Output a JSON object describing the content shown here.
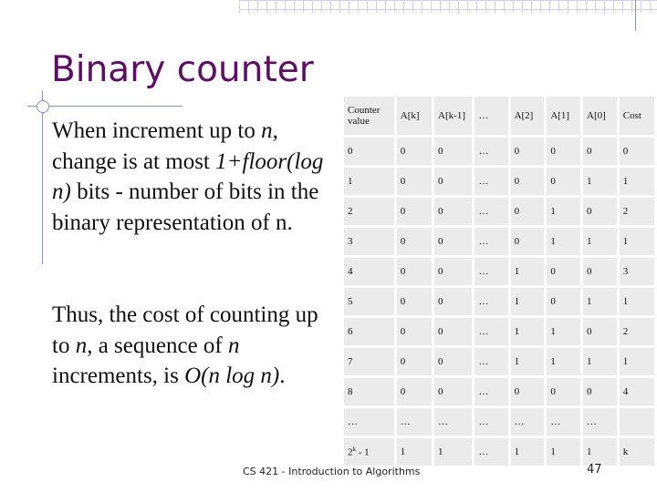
{
  "slide": {
    "title": "Binary counter",
    "para1": [
      {
        "text": "When increment up to ",
        "italic": false
      },
      {
        "text": "n",
        "italic": true
      },
      {
        "text": ", change is at most ",
        "italic": false
      },
      {
        "text": "1+floor(log n)",
        "italic": true
      },
      {
        "text": " bits - number of bits in the binary representation of n.",
        "italic": false
      }
    ],
    "para2": [
      {
        "text": "Thus, the cost of counting up to ",
        "italic": false
      },
      {
        "text": "n",
        "italic": true
      },
      {
        "text": ", a sequence of ",
        "italic": false
      },
      {
        "text": "n",
        "italic": true
      },
      {
        "text": " increments, is ",
        "italic": false
      },
      {
        "text": "O(n log n)",
        "italic": true
      },
      {
        "text": ".",
        "italic": false
      }
    ],
    "footer": "CS 421 - Introduction to Algorithms",
    "page_number": "47"
  },
  "table": {
    "headers": [
      "Counter value",
      "A[k]",
      "A[k-1]",
      "…",
      "A[2]",
      "A[1]",
      "A[0]",
      "Cost"
    ],
    "rows": [
      [
        "0",
        "0",
        "0",
        "…",
        "0",
        "0",
        "0",
        "0"
      ],
      [
        "1",
        "0",
        "0",
        "…",
        "0",
        "0",
        "1",
        "1"
      ],
      [
        "2",
        "0",
        "0",
        "…",
        "0",
        "1",
        "0",
        "2"
      ],
      [
        "3",
        "0",
        "0",
        "…",
        "0",
        "1",
        "1",
        "1"
      ],
      [
        "4",
        "0",
        "0",
        "…",
        "1",
        "0",
        "0",
        "3"
      ],
      [
        "5",
        "0",
        "0",
        "…",
        "1",
        "0",
        "1",
        "1"
      ],
      [
        "6",
        "0",
        "0",
        "…",
        "1",
        "1",
        "0",
        "2"
      ],
      [
        "7",
        "0",
        "0",
        "…",
        "1",
        "1",
        "1",
        "1"
      ],
      [
        "8",
        "0",
        "0",
        "…",
        "0",
        "0",
        "0",
        "4"
      ],
      [
        "…",
        "…",
        "…",
        "…",
        "…",
        "…",
        "…",
        ""
      ],
      [
        {
          "base": "2",
          "sup": "k",
          "rest": " - 1"
        },
        "1",
        "1",
        "…",
        "1",
        "1",
        "1",
        "k"
      ]
    ]
  },
  "colors": {
    "title": "#5c0f63",
    "accent_lines": "#8a8fc4",
    "cell_bg": "#ebebeb"
  }
}
